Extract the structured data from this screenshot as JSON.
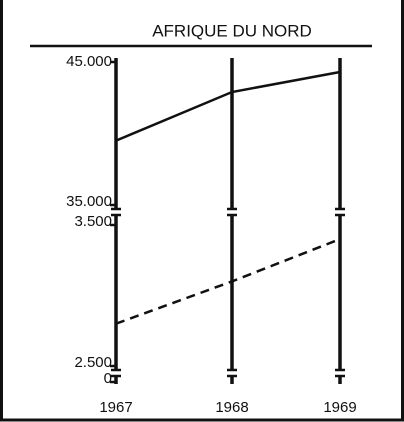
{
  "chart_data": {
    "type": "line",
    "title": "AFRIQUE DU NORD",
    "categories": [
      "1967",
      "1968",
      "1969"
    ],
    "ylim": [
      35000,
      45000
    ],
    "yticks": [
      {
        "value": 35000,
        "label": "35.000"
      },
      {
        "value": 45000,
        "label": "45.000"
      }
    ],
    "y2lim": [
      2500,
      3500
    ],
    "y2ticks": [
      0,
      {
        "value": 2500,
        "label": "2.500"
      },
      {
        "value": 3500,
        "label": "3.500"
      }
    ],
    "series": [
      {
        "color": "#111111",
        "dash": false,
        "values": [
          39500,
          42900,
          44300
        ]
      },
      {
        "color": "#111111",
        "dash": true,
        "axis": "y2",
        "values": [
          2800,
          3100,
          3400
        ]
      }
    ]
  }
}
